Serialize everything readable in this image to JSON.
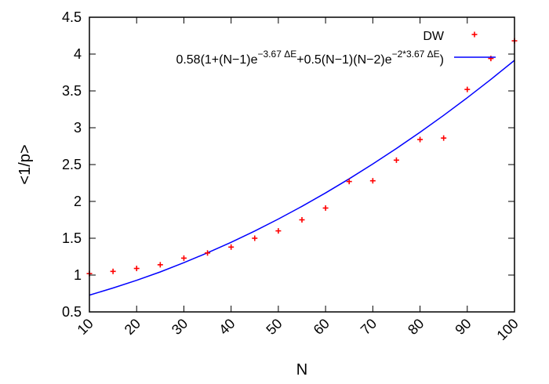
{
  "chart_data": {
    "type": "scatter",
    "title": "",
    "xlabel": "N",
    "ylabel": "<1/p>",
    "xlim": [
      10,
      100
    ],
    "ylim": [
      0.5,
      4.5
    ],
    "grid": false,
    "legend_placement": "top-right",
    "xticks": [
      "10",
      "20",
      "30",
      "40",
      "50",
      "60",
      "70",
      "80",
      "90",
      "100"
    ],
    "yticks": [
      "0.5",
      "1",
      "1.5",
      "2",
      "2.5",
      "3",
      "3.5",
      "4",
      "4.5"
    ],
    "series": [
      {
        "name": "DW",
        "kind": "points",
        "color": "#ff0000",
        "marker": "plus",
        "x": [
          10,
          15,
          20,
          25,
          30,
          35,
          40,
          45,
          50,
          55,
          60,
          65,
          70,
          75,
          80,
          85,
          90,
          95,
          100
        ],
        "y": [
          1.02,
          1.05,
          1.09,
          1.14,
          1.23,
          1.3,
          1.38,
          1.5,
          1.6,
          1.75,
          1.91,
          2.27,
          2.28,
          2.56,
          2.84,
          2.86,
          3.52,
          3.94,
          4.18
        ]
      },
      {
        "name_parts": {
          "a": "0.58(1+(N−1)e",
          "b": "−3.67 ΔE",
          "c": "+0.5(N−1)(N−2)e",
          "d": "−2*3.67 ΔE",
          "e": ")"
        },
        "kind": "line",
        "color": "#0000ff",
        "x": [
          10,
          15,
          20,
          25,
          30,
          35,
          40,
          45,
          50,
          55,
          60,
          65,
          70,
          75,
          80,
          85,
          90,
          95,
          100
        ],
        "y": [
          0.728,
          0.824,
          0.929,
          1.043,
          1.168,
          1.302,
          1.445,
          1.598,
          1.761,
          1.933,
          2.115,
          2.306,
          2.507,
          2.718,
          2.938,
          3.168,
          3.407,
          3.656,
          3.915
        ]
      }
    ]
  }
}
